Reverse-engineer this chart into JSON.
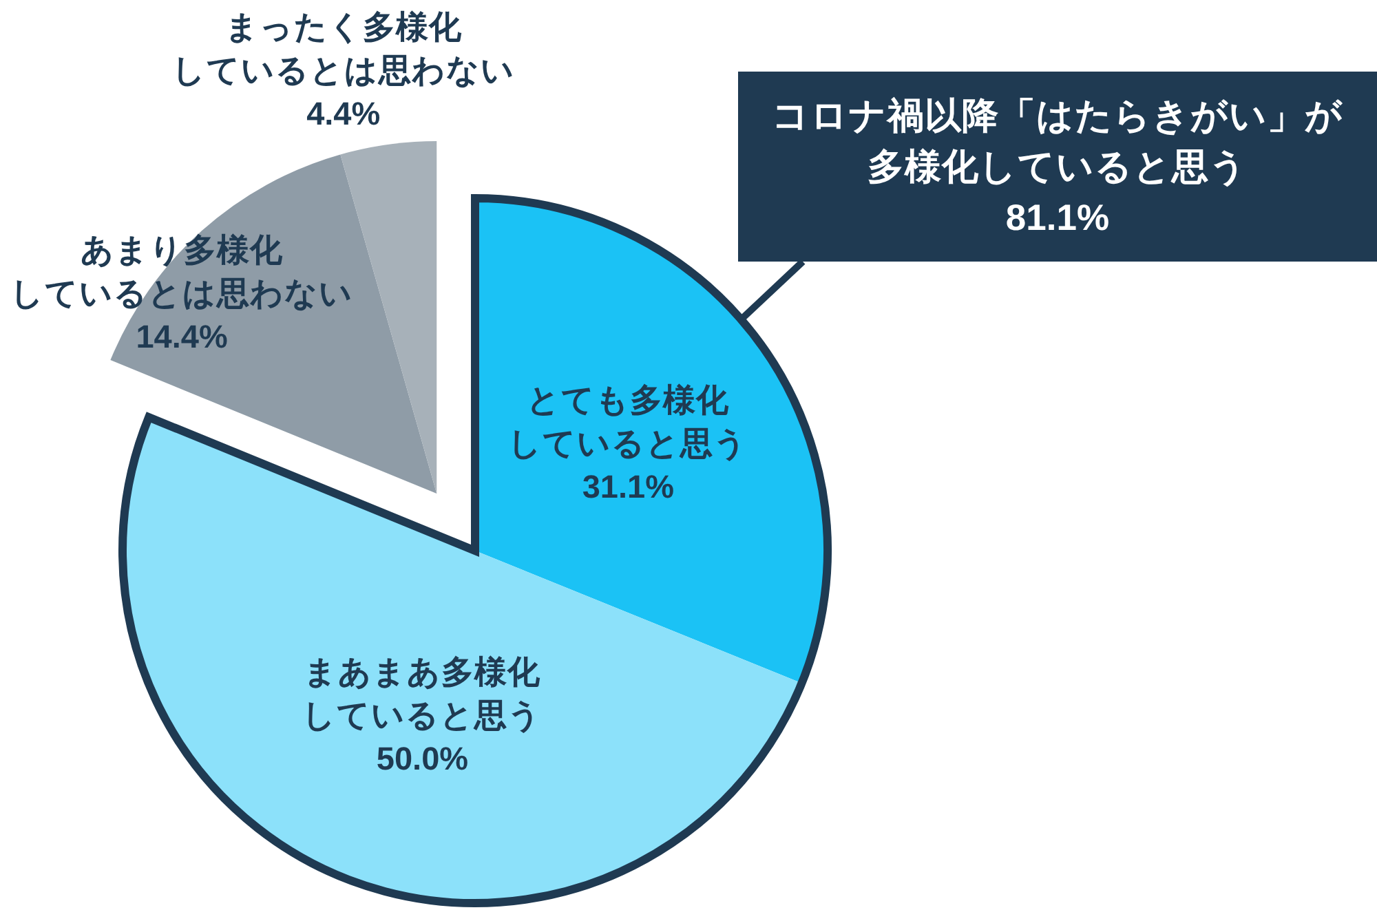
{
  "chart_data": {
    "type": "pie",
    "categories": [
      "とても多様化していると思う",
      "まあまあ多様化していると思う",
      "あまり多様化しているとは思わない",
      "まったく多様化しているとは思わない"
    ],
    "values": [
      31.1,
      50.0,
      14.4,
      4.4
    ],
    "colors": [
      "#1bc2f5",
      "#8ce1fa",
      "#8f9ca7",
      "#a7b1b9"
    ],
    "value_labels": [
      "31.1%",
      "50.0%",
      "14.4%",
      "4.4%"
    ],
    "annotations": [
      "コロナ禍以降「はたらきがい」が多様化していると思う",
      "81.1%"
    ]
  }
}
